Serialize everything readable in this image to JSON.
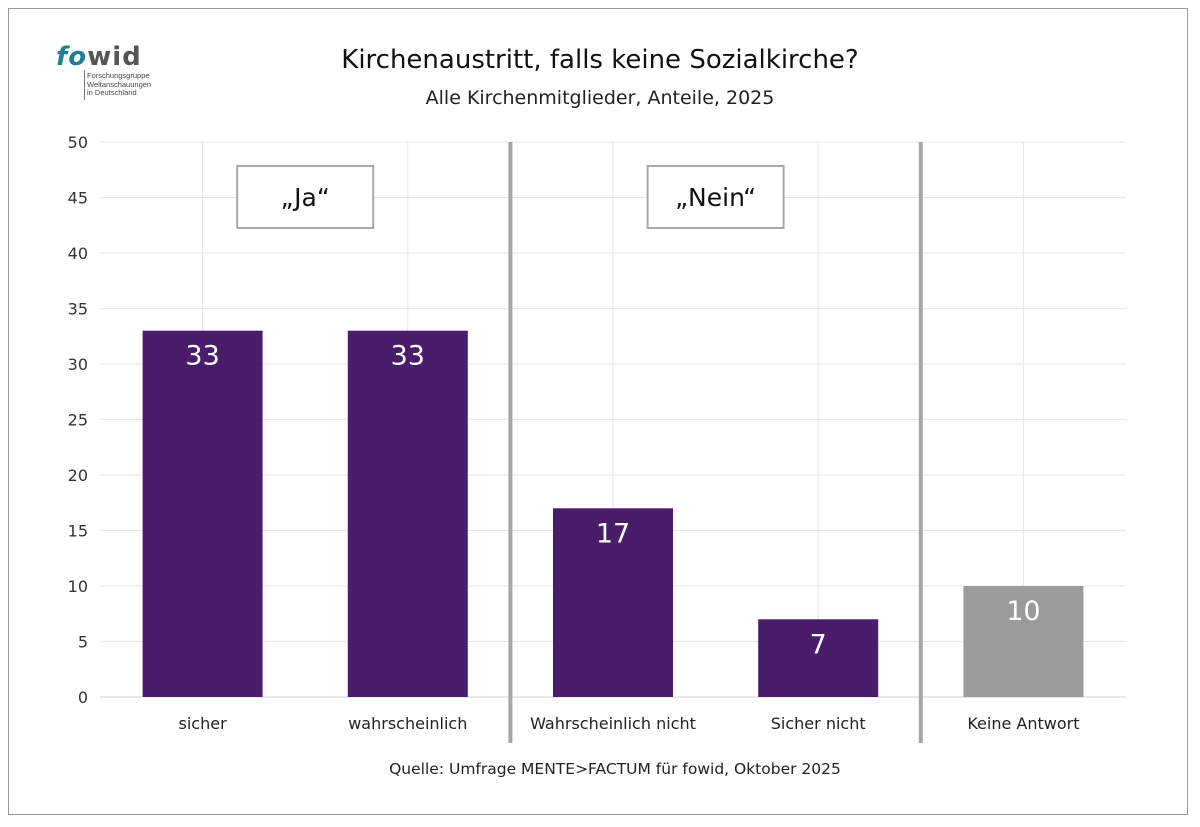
{
  "logo": {
    "fo": "fo",
    "wid": "wid",
    "sub_lines": [
      "Forschungsgruppe",
      "Weltanschauungen",
      "in Deutschland"
    ]
  },
  "chart_data": {
    "type": "bar",
    "title": "Kirchenaustritt, falls keine Sozialkirche?",
    "subtitle": "Alle Kirchenmitglieder, Anteile, 2025",
    "categories": [
      "sicher",
      "wahrscheinlich",
      "Wahrscheinlich nicht",
      "Sicher nicht",
      "Keine Antwort"
    ],
    "values": [
      33,
      33,
      17,
      7,
      10
    ],
    "value_labels": [
      "33",
      "33",
      "17",
      "7",
      "10"
    ],
    "bar_colors": [
      "#4a1d6b",
      "#4a1d6b",
      "#4a1d6b",
      "#4a1d6b",
      "#9b9b9b"
    ],
    "ylim": [
      0,
      50
    ],
    "yticks": [
      0,
      5,
      10,
      15,
      20,
      25,
      30,
      35,
      40,
      45,
      50
    ],
    "ytick_labels": [
      "0",
      "5",
      "10",
      "15",
      "20",
      "25",
      "30",
      "35",
      "40",
      "45",
      "50"
    ],
    "xlabel": "",
    "ylabel": "",
    "grid": true,
    "groups": [
      {
        "label": "„Ja“",
        "categories": [
          "sicher",
          "wahrscheinlich"
        ]
      },
      {
        "label": "„Nein“",
        "categories": [
          "Wahrscheinlich nicht",
          "Sicher nicht"
        ]
      }
    ],
    "separators_after": [
      1,
      3
    ],
    "source": "Quelle: Umfrage MENTE>FACTUM für fowid, Oktober 2025"
  },
  "colors": {
    "bar_main": "#4a1d6b",
    "bar_other": "#9b9b9b",
    "separator": "#a6a6a6",
    "grid": "#e6e6e6",
    "logo_accent": "#1e7f93"
  }
}
